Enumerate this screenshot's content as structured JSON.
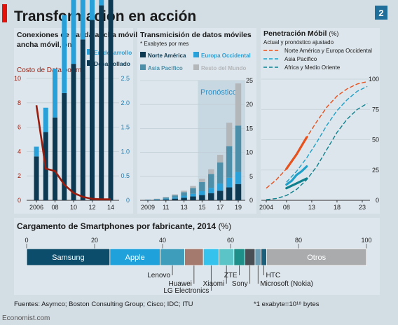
{
  "header": {
    "title": "Transformación en acción",
    "page_number": "2",
    "colors": {
      "background": "#d3dde4",
      "panel": "#dde6ec",
      "accent_red": "#e3120b"
    }
  },
  "footer": {
    "sources": "Fuentes: Asymco; Boston Consulting Group; Cisco; IDC; ITU",
    "exabyte_note": "*1 exabyte=10¹⁸ bytes",
    "credit": "Economist.com"
  },
  "chart_data": [
    {
      "type": "bar",
      "title": "Conexiones de banda ancha móvil",
      "title_unit": ", bn",
      "subtitle_line": "Costo de Data por mb",
      "legend": [
        "En desarrollo",
        "Desarrollado"
      ],
      "x": [
        2006,
        2007,
        2008,
        2009,
        2010,
        2011,
        2012,
        2013,
        2014
      ],
      "xticks": [
        "2006",
        "08",
        "10",
        "12",
        "14"
      ],
      "ylim": [
        0,
        10
      ],
      "yticks": [
        "0",
        "2",
        "4",
        "6",
        "8",
        "10"
      ],
      "y2lim": [
        0,
        2.5
      ],
      "y2ticks": [
        "0",
        "0.5",
        "1.0",
        "1.5",
        "2.0",
        "2.5"
      ],
      "series": [
        {
          "name": "Desarrollado",
          "color": "#0d3a52",
          "values": [
            0.9,
            1.4,
            1.7,
            2.2,
            2.8,
            3.3,
            3.7,
            4.0,
            4.3
          ]
        },
        {
          "name": "En desarrollo",
          "color": "#2aa0d8",
          "values": [
            0.2,
            0.5,
            1.0,
            1.6,
            2.4,
            3.4,
            4.3,
            5.3,
            6.6
          ]
        }
      ],
      "line": {
        "color": "#9b1c0c",
        "x": [
          2006,
          2007,
          2008,
          2009,
          2010,
          2011,
          2012,
          2013,
          2014
        ],
        "values": [
          1.95,
          0.65,
          0.6,
          0.32,
          0.15,
          0.07,
          0.03,
          0.02,
          0.02
        ]
      }
    },
    {
      "type": "bar",
      "title": "Transmicisión de datos móviles",
      "subtitle": "* Exabytes por mes",
      "legend": [
        "Norte América",
        "Europa Occidental",
        "Asia Pacifico",
        "Resto del Mundo"
      ],
      "annotation": "Pronóstico",
      "x": [
        2009,
        2010,
        2011,
        2012,
        2013,
        2014,
        2015,
        2016,
        2017,
        2018,
        2019
      ],
      "forecast_from": 2015,
      "xticks": [
        "2009",
        "11",
        "13",
        "15",
        "17",
        "19"
      ],
      "ylim": [
        0,
        25
      ],
      "yticks": [
        "0",
        "5",
        "10",
        "15",
        "20",
        "25"
      ],
      "series": [
        {
          "name": "Norte América",
          "color": "#0d3a52",
          "values": [
            0.05,
            0.1,
            0.2,
            0.35,
            0.55,
            0.8,
            1.1,
            1.5,
            2.0,
            2.7,
            3.4
          ]
        },
        {
          "name": "Europa Occidental",
          "color": "#2aa0d8",
          "values": [
            0.05,
            0.08,
            0.15,
            0.25,
            0.4,
            0.55,
            0.8,
            1.1,
            1.5,
            2.0,
            2.5
          ]
        },
        {
          "name": "Asia Pacifico",
          "color": "#4d8fa8",
          "values": [
            0.05,
            0.1,
            0.25,
            0.45,
            0.75,
            1.2,
            1.9,
            2.9,
            4.4,
            6.6,
            9.7
          ]
        },
        {
          "name": "Resto del Mundo",
          "color": "#b4b7ba",
          "values": [
            0.02,
            0.05,
            0.1,
            0.2,
            0.3,
            0.45,
            0.7,
            1.0,
            1.6,
            4.9,
            8.8
          ]
        }
      ]
    },
    {
      "type": "line",
      "title": "Penetración Móbil",
      "title_unit": "(%)",
      "subtitle": "Actual y pronóstico ajustado",
      "xlim": [
        2003,
        2025
      ],
      "xticks": [
        "2004",
        "08",
        "13",
        "18",
        "23"
      ],
      "ylim": [
        0,
        100
      ],
      "yticks": [
        "0",
        "25",
        "50",
        "75",
        "100"
      ],
      "series": [
        {
          "name": "Norte América y Europa Occidental",
          "color": "#e8501c",
          "x": [
            2004,
            2006,
            2008,
            2010,
            2012,
            2014,
            2016,
            2018,
            2020,
            2022,
            2024
          ],
          "values": [
            10,
            17,
            26,
            38,
            52,
            65,
            77,
            86,
            92,
            96,
            98
          ]
        },
        {
          "name": "Asia Pacífico",
          "color": "#1da0c9",
          "x": [
            2008,
            2010,
            2012,
            2014,
            2016,
            2018,
            2020,
            2022,
            2024
          ],
          "values": [
            15,
            24,
            35,
            48,
            62,
            74,
            83,
            90,
            94
          ]
        },
        {
          "name": "Africa y Medio Oriente",
          "color": "#0e7f8c",
          "x": [
            2004,
            2006,
            2008,
            2010,
            2012,
            2014,
            2016,
            2018,
            2020,
            2022,
            2024
          ],
          "values": [
            0.5,
            1.5,
            4,
            9,
            17,
            28,
            42,
            56,
            67,
            75,
            80
          ]
        }
      ],
      "actual_segments": [
        {
          "series": "Norte América y Europa Occidental",
          "x": [
            2008,
            2009,
            2010,
            2011,
            2012
          ],
          "values": [
            26,
            32,
            38,
            45,
            52
          ]
        },
        {
          "series": "Asia Pacífico",
          "x": [
            2008,
            2009,
            2010,
            2011,
            2012
          ],
          "values": [
            13,
            16,
            21,
            24,
            28
          ]
        },
        {
          "series": "Africa y Medio Oriente",
          "x": [
            2008,
            2009,
            2010,
            2011,
            2012
          ],
          "values": [
            10,
            12,
            14,
            16,
            18
          ]
        }
      ]
    },
    {
      "type": "bar",
      "title": "Cargamento de Smartphones por fabricante, 2014",
      "title_unit": "(%)",
      "xlim": [
        0,
        100
      ],
      "xticks": [
        "0",
        "20",
        "40",
        "60",
        "80",
        "100"
      ],
      "segments": [
        {
          "name": "Samsung",
          "value": 24.5,
          "color": "#0d4d6c",
          "inside": true
        },
        {
          "name": "Apple",
          "value": 14.8,
          "color": "#1fa2dc",
          "inside": true
        },
        {
          "name": "Lenovo",
          "value": 7.2,
          "color": "#3e9dbb"
        },
        {
          "name": "Huawei",
          "value": 5.5,
          "color": "#a47a6e"
        },
        {
          "name": "LG Electronics",
          "value": 4.6,
          "color": "#35c3ee"
        },
        {
          "name": "Xiaomi",
          "value": 4.4,
          "color": "#5bc4c6"
        },
        {
          "name": "ZTE",
          "value": 3.2,
          "color": "#1f8f8a"
        },
        {
          "name": "Sony",
          "value": 3.0,
          "color": "#4a4f55"
        },
        {
          "name": "Microsoft (Nokia)",
          "value": 1.8,
          "color": "#6a9bb0"
        },
        {
          "name": "HTC",
          "value": 1.6,
          "color": "#1b5f7a"
        },
        {
          "name": "Otros",
          "value": 29.4,
          "color": "#a9abad",
          "inside": true
        }
      ]
    }
  ]
}
